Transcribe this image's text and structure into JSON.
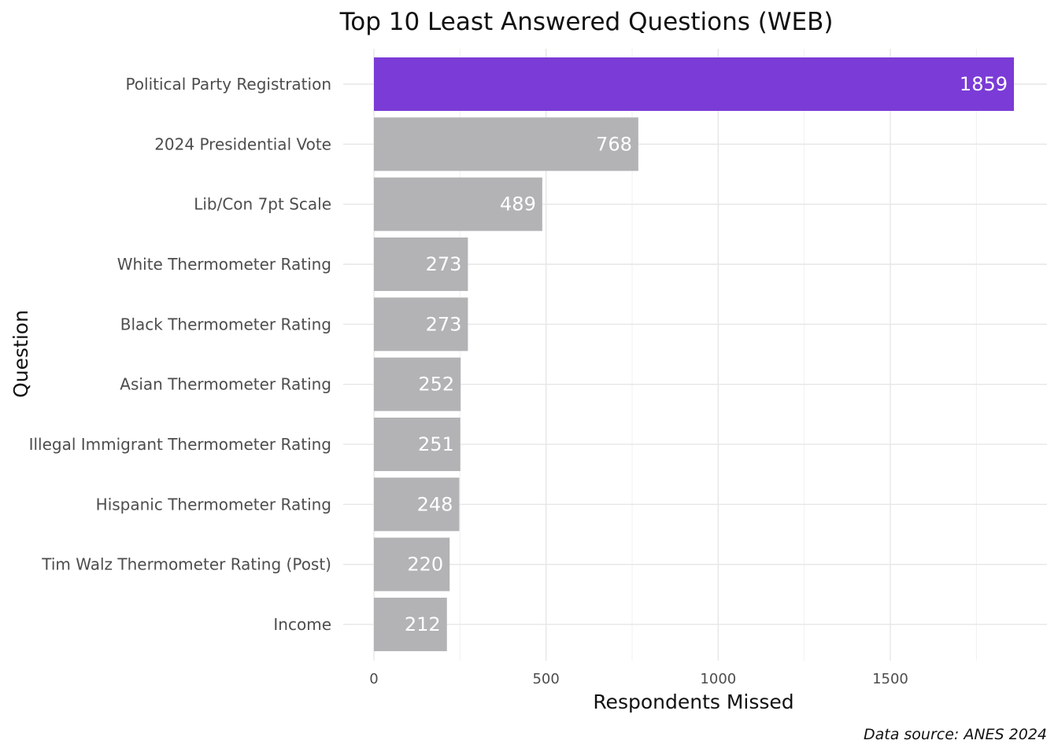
{
  "chart_data": {
    "type": "bar",
    "orientation": "horizontal",
    "title": "Top 10 Least Answered Questions (WEB)",
    "xlabel": "Respondents Missed",
    "ylabel": "Question",
    "caption": "Data source: ANES 2024",
    "categories": [
      "Political Party Registration",
      "2024 Presidential Vote",
      "Lib/Con 7pt Scale",
      "White Thermometer Rating",
      "Black Thermometer Rating",
      "Asian Thermometer Rating",
      "Illegal Immigrant Thermometer Rating",
      "Hispanic Thermometer Rating",
      "Tim Walz Thermometer Rating (Post)",
      "Income"
    ],
    "values": [
      1859,
      768,
      489,
      273,
      273,
      252,
      251,
      248,
      220,
      212
    ],
    "data_labels": [
      "1859",
      "768",
      "489",
      "273",
      "273",
      "252",
      "251",
      "248",
      "220",
      "212"
    ],
    "xticks": [
      0,
      500,
      1000,
      1500
    ],
    "xtick_labels": [
      "0",
      "500",
      "1000",
      "1500"
    ],
    "xlim": [
      0,
      1859
    ],
    "highlight_index": 0,
    "colors": {
      "highlight": "#7b3bd6",
      "bar": "#b3b3b6",
      "label": "#ffffff"
    },
    "grid": true,
    "legend": "none"
  }
}
